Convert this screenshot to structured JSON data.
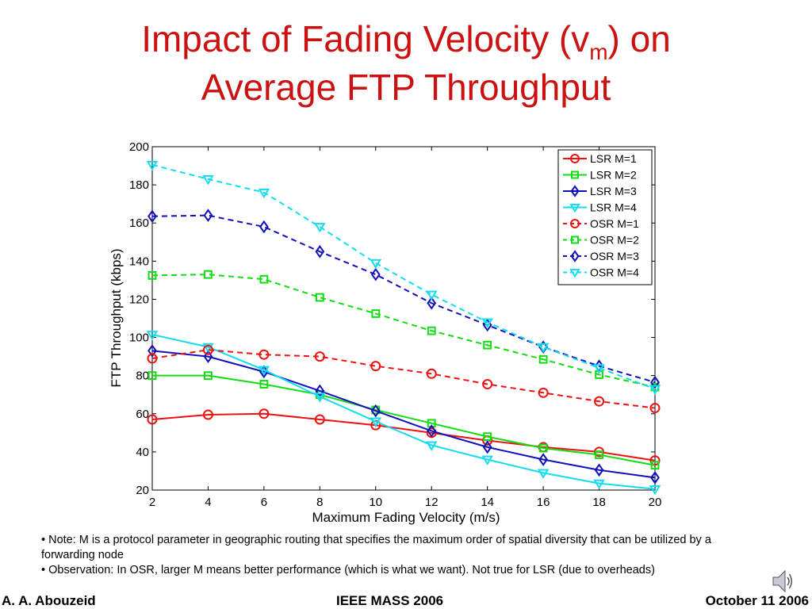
{
  "slide": {
    "title_line1_prefix": "Impact of Fading Velocity (v",
    "title_subscript": "m",
    "title_line1_suffix": ") on",
    "title_line2": "Average FTP Throughput",
    "title_color": "#cc1111"
  },
  "notes": [
    "• Note: M is a protocol parameter in geographic routing that specifies the maximum order of spatial diversity that can be utilized by a forwarding node",
    "• Observation: In OSR, larger M means better performance (which is what we want). Not true for LSR (due to overheads)"
  ],
  "footer": {
    "left": "A. A. Abouzeid",
    "center": "IEEE MASS 2006",
    "right": "October 11 2006"
  },
  "icons": {
    "speaker": "speaker-icon"
  },
  "chart_data": {
    "type": "line",
    "title": "",
    "xlabel": "Maximum Fading Velocity (m/s)",
    "ylabel": "FTP Throughput (kbps)",
    "x": [
      2,
      4,
      6,
      8,
      10,
      12,
      14,
      16,
      18,
      20
    ],
    "xlim": [
      2,
      20
    ],
    "ylim": [
      20,
      200
    ],
    "xticks": [
      "2",
      "4",
      "6",
      "8",
      "10",
      "12",
      "14",
      "16",
      "18",
      "20"
    ],
    "yticks": [
      "20",
      "40",
      "60",
      "80",
      "100",
      "120",
      "140",
      "160",
      "180",
      "200"
    ],
    "grid": false,
    "legend_position": "top-right",
    "series": [
      {
        "name": "LSR M=1",
        "color": "#ee1111",
        "dash": "solid",
        "marker": "circle",
        "values": [
          57,
          59.5,
          60,
          57,
          54,
          50,
          46,
          42.5,
          40,
          35.5
        ]
      },
      {
        "name": "LSR M=2",
        "color": "#11dd11",
        "dash": "solid",
        "marker": "square",
        "values": [
          80,
          80,
          75.5,
          70,
          62,
          55,
          48,
          42,
          38.5,
          33
        ]
      },
      {
        "name": "LSR M=3",
        "color": "#1111bb",
        "dash": "solid",
        "marker": "diamond",
        "values": [
          93,
          90,
          82,
          72,
          61.5,
          51,
          42.5,
          36,
          30.5,
          26.5
        ]
      },
      {
        "name": "LSR M=4",
        "color": "#11ddee",
        "dash": "solid",
        "marker": "triangle",
        "values": [
          101.5,
          95,
          83,
          69,
          56,
          43.5,
          36,
          29,
          23.5,
          20.5
        ]
      },
      {
        "name": "OSR M=1",
        "color": "#ee1111",
        "dash": "dashed",
        "marker": "circle",
        "values": [
          89,
          93.5,
          91,
          90,
          85,
          81,
          75.5,
          71,
          66.5,
          63
        ]
      },
      {
        "name": "OSR M=2",
        "color": "#11dd11",
        "dash": "dashed",
        "marker": "square",
        "values": [
          132.5,
          133,
          130.5,
          121,
          112.5,
          103.5,
          96,
          88.5,
          80.5,
          74
        ]
      },
      {
        "name": "OSR M=3",
        "color": "#1111bb",
        "dash": "dashed",
        "marker": "diamond",
        "values": [
          163.5,
          164,
          158,
          145,
          133,
          118,
          106.5,
          95,
          85,
          76.5
        ]
      },
      {
        "name": "OSR M=4",
        "color": "#11ddee",
        "dash": "dashed",
        "marker": "triangle",
        "values": [
          190.5,
          183,
          176,
          158,
          139,
          122.5,
          108,
          95,
          84,
          73
        ]
      }
    ]
  }
}
